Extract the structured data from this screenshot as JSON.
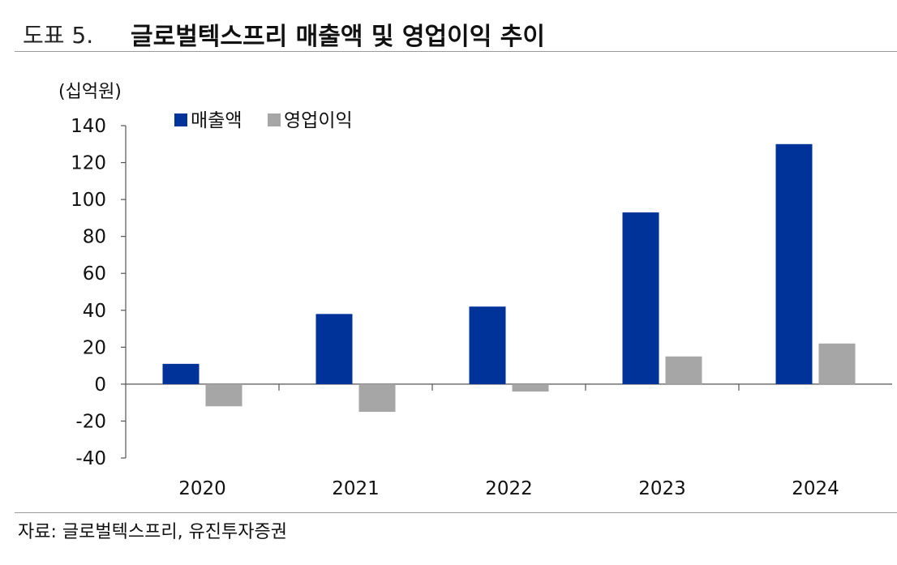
{
  "header": {
    "figure_label": "도표 5.",
    "title": "글로벌텍스프리 매출액 및 영업이익 추이"
  },
  "source": "자료: 글로벌텍스프리, 유진투자증권",
  "chart_data": {
    "type": "bar",
    "unit": "(십억원)",
    "categories": [
      "2020",
      "2021",
      "2022",
      "2023",
      "2024"
    ],
    "series": [
      {
        "name": "매출액",
        "color": "#003399",
        "values": [
          11,
          38,
          42,
          93,
          130
        ]
      },
      {
        "name": "영업이익",
        "color": "#a6a6a6",
        "values": [
          -12,
          -15,
          -4,
          15,
          22
        ]
      }
    ],
    "ylim": [
      -40,
      140
    ],
    "yticks": [
      -40,
      -20,
      0,
      20,
      40,
      60,
      80,
      100,
      120,
      140
    ],
    "legend_position": "top-left",
    "grid": false
  }
}
